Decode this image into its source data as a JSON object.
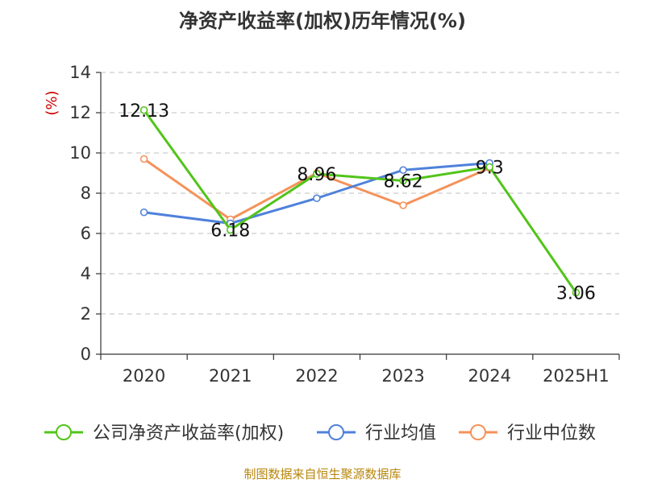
{
  "title": "净资产收益率(加权)历年情况(%)",
  "source": "制图数据来自恒生聚源数据库",
  "colors": {
    "company": "#52c41a",
    "industry_avg": "#4f81db",
    "industry_median": "#f5925a",
    "unit": "#cc0000",
    "axis": "#333333",
    "grid": "#cccccc",
    "source": "#b8860b"
  },
  "chart_data": {
    "type": "line",
    "title": "净资产收益率(加权)历年情况(%)",
    "ylabel": "(%)",
    "xlabel": "",
    "ylim": [
      0,
      14
    ],
    "yticks": [
      0,
      2,
      4,
      6,
      8,
      10,
      12,
      14
    ],
    "categories": [
      "2020",
      "2021",
      "2022",
      "2023",
      "2024",
      "2025H1"
    ],
    "grid": "horizontal dashed",
    "legend_position": "bottom",
    "series": [
      {
        "name": "公司净资产收益率(加权)",
        "color": "#52c41a",
        "values": [
          12.13,
          6.18,
          8.96,
          8.62,
          9.3,
          3.06
        ],
        "labels": [
          "12.13",
          "6.18",
          "8.96",
          "8.62",
          "9.3",
          "3.06"
        ]
      },
      {
        "name": "行业均值",
        "color": "#4f81db",
        "values": [
          7.05,
          6.5,
          7.75,
          9.15,
          9.5,
          null
        ]
      },
      {
        "name": "行业中位数",
        "color": "#f5925a",
        "values": [
          9.7,
          6.7,
          9.0,
          7.4,
          9.25,
          null
        ]
      }
    ]
  }
}
